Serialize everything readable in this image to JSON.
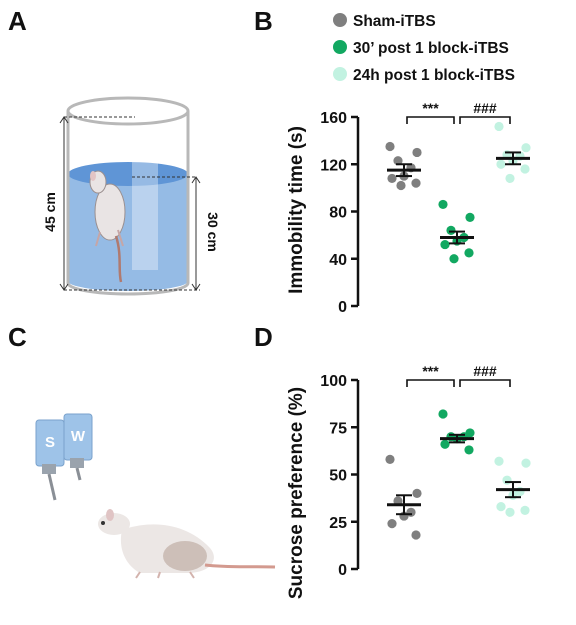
{
  "panels": {
    "A": "A",
    "B": "B",
    "C": "C",
    "D": "D"
  },
  "illustration_A": {
    "height_label": "45 cm",
    "water_label": "30 cm"
  },
  "illustration_C": {
    "bottle_left_label": "S",
    "bottle_right_label": "W"
  },
  "legend": [
    {
      "label": "Sham-iTBS",
      "color": "#7f7f7f"
    },
    {
      "label": "30’ post 1 block-iTBS",
      "color": "#12a861"
    },
    {
      "label": "24h post 1 block-iTBS",
      "color": "#c2f2e1"
    }
  ],
  "colors": {
    "sham": "#7f7f7f",
    "post30": "#12a861",
    "post24h": "#c2f2e1",
    "axis": "#111111"
  },
  "chart_data": [
    {
      "type": "scatter",
      "panel": "B",
      "ylabel": "Immobility time (s)",
      "ylim": [
        0,
        160
      ],
      "yticks": [
        0,
        40,
        80,
        120,
        160
      ],
      "groups": [
        {
          "name": "Sham-iTBS",
          "mean": 115,
          "sem": 5,
          "points": [
            135,
            130,
            123,
            117,
            110,
            108,
            104,
            102
          ]
        },
        {
          "name": "30’ post 1 block-iTBS",
          "mean": 58,
          "sem": 5,
          "points": [
            86,
            75,
            64,
            58,
            55,
            52,
            45,
            40
          ]
        },
        {
          "name": "24h post 1 block-iTBS",
          "mean": 125,
          "sem": 5,
          "points": [
            152,
            134,
            128,
            127,
            123,
            120,
            116,
            108
          ]
        }
      ],
      "significance": [
        {
          "from": 0,
          "to": 1,
          "label": "***"
        },
        {
          "from": 1,
          "to": 2,
          "label": "###"
        }
      ]
    },
    {
      "type": "scatter",
      "panel": "D",
      "ylabel": "Sucrose preference (%)",
      "ylim": [
        0,
        100
      ],
      "yticks": [
        0,
        25,
        50,
        75,
        100
      ],
      "groups": [
        {
          "name": "Sham-iTBS",
          "mean": 34,
          "sem": 5,
          "points": [
            58,
            40,
            36,
            30,
            28,
            24,
            18
          ]
        },
        {
          "name": "30’ post 1 block-iTBS",
          "mean": 69,
          "sem": 2,
          "points": [
            82,
            72,
            70,
            70,
            69,
            66,
            63
          ]
        },
        {
          "name": "24h post 1 block-iTBS",
          "mean": 42,
          "sem": 4,
          "points": [
            57,
            56,
            47,
            41,
            39,
            33,
            31,
            30
          ]
        }
      ],
      "significance": [
        {
          "from": 0,
          "to": 1,
          "label": "***"
        },
        {
          "from": 1,
          "to": 2,
          "label": "###"
        }
      ]
    }
  ]
}
